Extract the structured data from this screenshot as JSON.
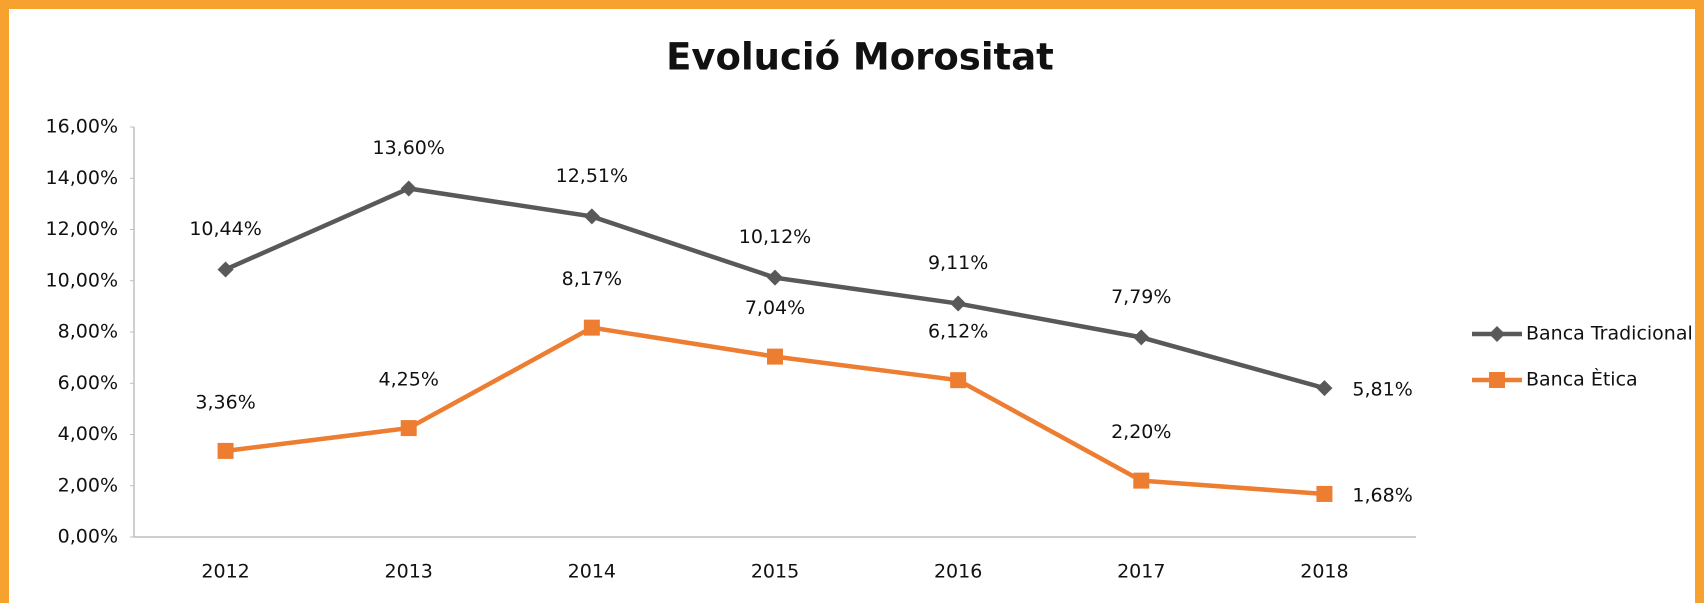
{
  "chart_data": {
    "type": "line",
    "title": "Evolució Morositat",
    "categories": [
      "2012",
      "2013",
      "2014",
      "2015",
      "2016",
      "2017",
      "2018"
    ],
    "series": [
      {
        "name": "Banca Tradicional",
        "color": "#595959",
        "marker": "diamond",
        "values": [
          10.44,
          13.6,
          12.51,
          10.12,
          9.11,
          7.79,
          5.81
        ],
        "value_labels": [
          "10,44%",
          "13,60%",
          "12,51%",
          "10,12%",
          "9,11%",
          "7,79%",
          "5,81%"
        ]
      },
      {
        "name": "Banca Ètica",
        "color": "#ed7d31",
        "marker": "square",
        "values": [
          3.36,
          4.25,
          8.17,
          7.04,
          6.12,
          2.2,
          1.68
        ],
        "value_labels": [
          "3,36%",
          "4,25%",
          "8,17%",
          "7,04%",
          "6,12%",
          "2,20%",
          "1,68%"
        ]
      }
    ],
    "ylim": [
      0,
      16
    ],
    "yticks": [
      {
        "value": 0,
        "label": "0,00%"
      },
      {
        "value": 2,
        "label": "2,00%"
      },
      {
        "value": 4,
        "label": "4,00%"
      },
      {
        "value": 6,
        "label": "6,00%"
      },
      {
        "value": 8,
        "label": "8,00%"
      },
      {
        "value": 10,
        "label": "10,00%"
      },
      {
        "value": 12,
        "label": "12,00%"
      },
      {
        "value": 14,
        "label": "14,00%"
      },
      {
        "value": 16,
        "label": "16,00%"
      }
    ],
    "grid": false,
    "legend": "right"
  }
}
